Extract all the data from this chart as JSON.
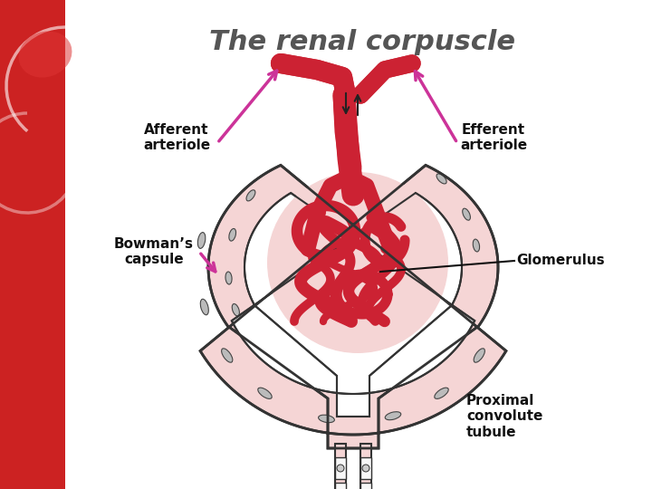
{
  "title": "The renal corpuscle",
  "title_color": "#555555",
  "title_fontsize": 22,
  "bg_color": "#ffffff",
  "left_panel_color": "#cc2222",
  "labels": {
    "afferent_arteriole": "Afferent\narteriole",
    "efferent_arteriole": "Efferent\narteriole",
    "bowmans_capsule": "Bowman’s\ncapsule",
    "glomerulus": "Glomerulus",
    "proximal_convolute": "Proximal\nconvolute\ntubule"
  },
  "arrow_color": "#cc3399",
  "line_color": "#222222",
  "vessel_color": "#cc2233",
  "capsule_fill": "#f5d5d5",
  "capsule_edge": "#333333",
  "label_fontsize": 11,
  "label_fontweight": "bold"
}
